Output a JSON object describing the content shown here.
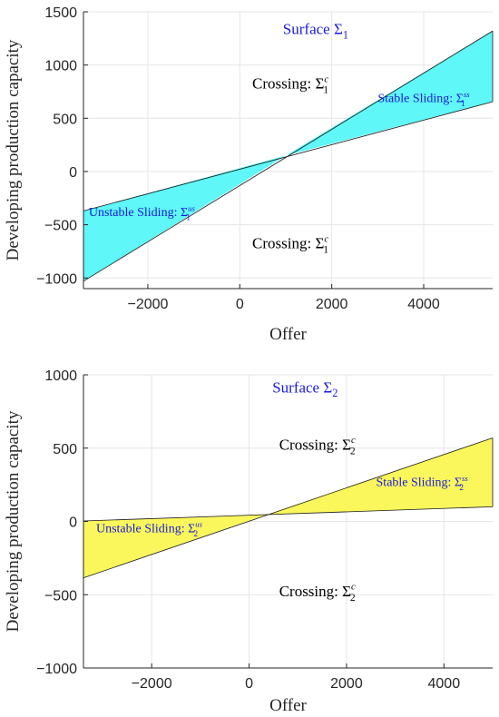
{
  "chart_data": [
    {
      "type": "area",
      "xlabel": "Offer",
      "ylabel": "Developing production capacity",
      "xlim": [
        -3400,
        5500
      ],
      "ylim": [
        -1100,
        1500
      ],
      "xticks": [
        -2000,
        0,
        2000,
        4000
      ],
      "yticks": [
        -1000,
        -500,
        0,
        500,
        1000,
        1500
      ],
      "xtick_labels": [
        "−2000",
        "0",
        "2000",
        "4000"
      ],
      "ytick_labels": [
        "−1000",
        "−500",
        "0",
        "500",
        "1000",
        "1500"
      ],
      "grid": true,
      "fill_color": "#5ff7f7",
      "lines": [
        {
          "x": [
            -3400,
            5500
          ],
          "y": [
            -370,
            655
          ]
        },
        {
          "x": [
            -3400,
            5500
          ],
          "y": [
            -1030,
            1320
          ]
        }
      ],
      "intersection": [
        1000,
        150
      ],
      "annotations": [
        {
          "text": "Surface ",
          "sym": "Σ",
          "sub": "1",
          "sup": "",
          "color": "#1a1adb",
          "x": 1650,
          "y": 1290,
          "size": 17
        },
        {
          "text": "Crossing: ",
          "sym": "Σ",
          "sub": "1",
          "sup": "c",
          "color": "#000000",
          "x": 1100,
          "y": 780,
          "size": 17
        },
        {
          "text": "Stable Sliding: ",
          "sym": "Σ",
          "sub": "1",
          "sup": "ss",
          "color": "#1a1adb",
          "x": 4000,
          "y": 650,
          "size": 14
        },
        {
          "text": "Unstable Sliding: ",
          "sym": "Σ",
          "sub": "1",
          "sup": "us",
          "color": "#1a1adb",
          "x": -2130,
          "y": -420,
          "size": 14
        },
        {
          "text": "Crossing: ",
          "sym": "Σ",
          "sub": "1",
          "sup": "c",
          "color": "#000000",
          "x": 1100,
          "y": -720,
          "size": 17
        }
      ]
    },
    {
      "type": "area",
      "xlabel": "Offer",
      "ylabel": "Developing production capacity",
      "xlim": [
        -3400,
        5000
      ],
      "ylim": [
        -1000,
        1000
      ],
      "xticks": [
        -2000,
        0,
        2000,
        4000
      ],
      "yticks": [
        -1000,
        -500,
        0,
        500,
        1000
      ],
      "xtick_labels": [
        "−2000",
        "0",
        "2000",
        "4000"
      ],
      "ytick_labels": [
        "−1000",
        "−500",
        "0",
        "500",
        "1000"
      ],
      "grid": true,
      "fill_color": "#f9f75c",
      "lines": [
        {
          "x": [
            -3400,
            5000
          ],
          "y": [
            3,
            100
          ]
        },
        {
          "x": [
            -3400,
            5000
          ],
          "y": [
            -385,
            570
          ]
        }
      ],
      "intersection": [
        350,
        45
      ],
      "annotations": [
        {
          "text": "Surface ",
          "sym": "Σ",
          "sub": "2",
          "sup": "",
          "color": "#1a1adb",
          "x": 1150,
          "y": 880,
          "size": 17
        },
        {
          "text": "Crossing: ",
          "sym": "Σ",
          "sub": "2",
          "sup": "c",
          "color": "#000000",
          "x": 1400,
          "y": 490,
          "size": 17
        },
        {
          "text": "Stable Sliding: ",
          "sym": "Σ",
          "sub": "2",
          "sup": "ss",
          "color": "#1a1adb",
          "x": 3550,
          "y": 240,
          "size": 14
        },
        {
          "text": "Unstable Sliding: ",
          "sym": "Σ",
          "sub": "2",
          "sup": "us",
          "color": "#1a1adb",
          "x": -2050,
          "y": -75,
          "size": 14
        },
        {
          "text": "Crossing: ",
          "sym": "Σ",
          "sub": "2",
          "sup": "c",
          "color": "#000000",
          "x": 1400,
          "y": -510,
          "size": 17
        }
      ]
    }
  ]
}
